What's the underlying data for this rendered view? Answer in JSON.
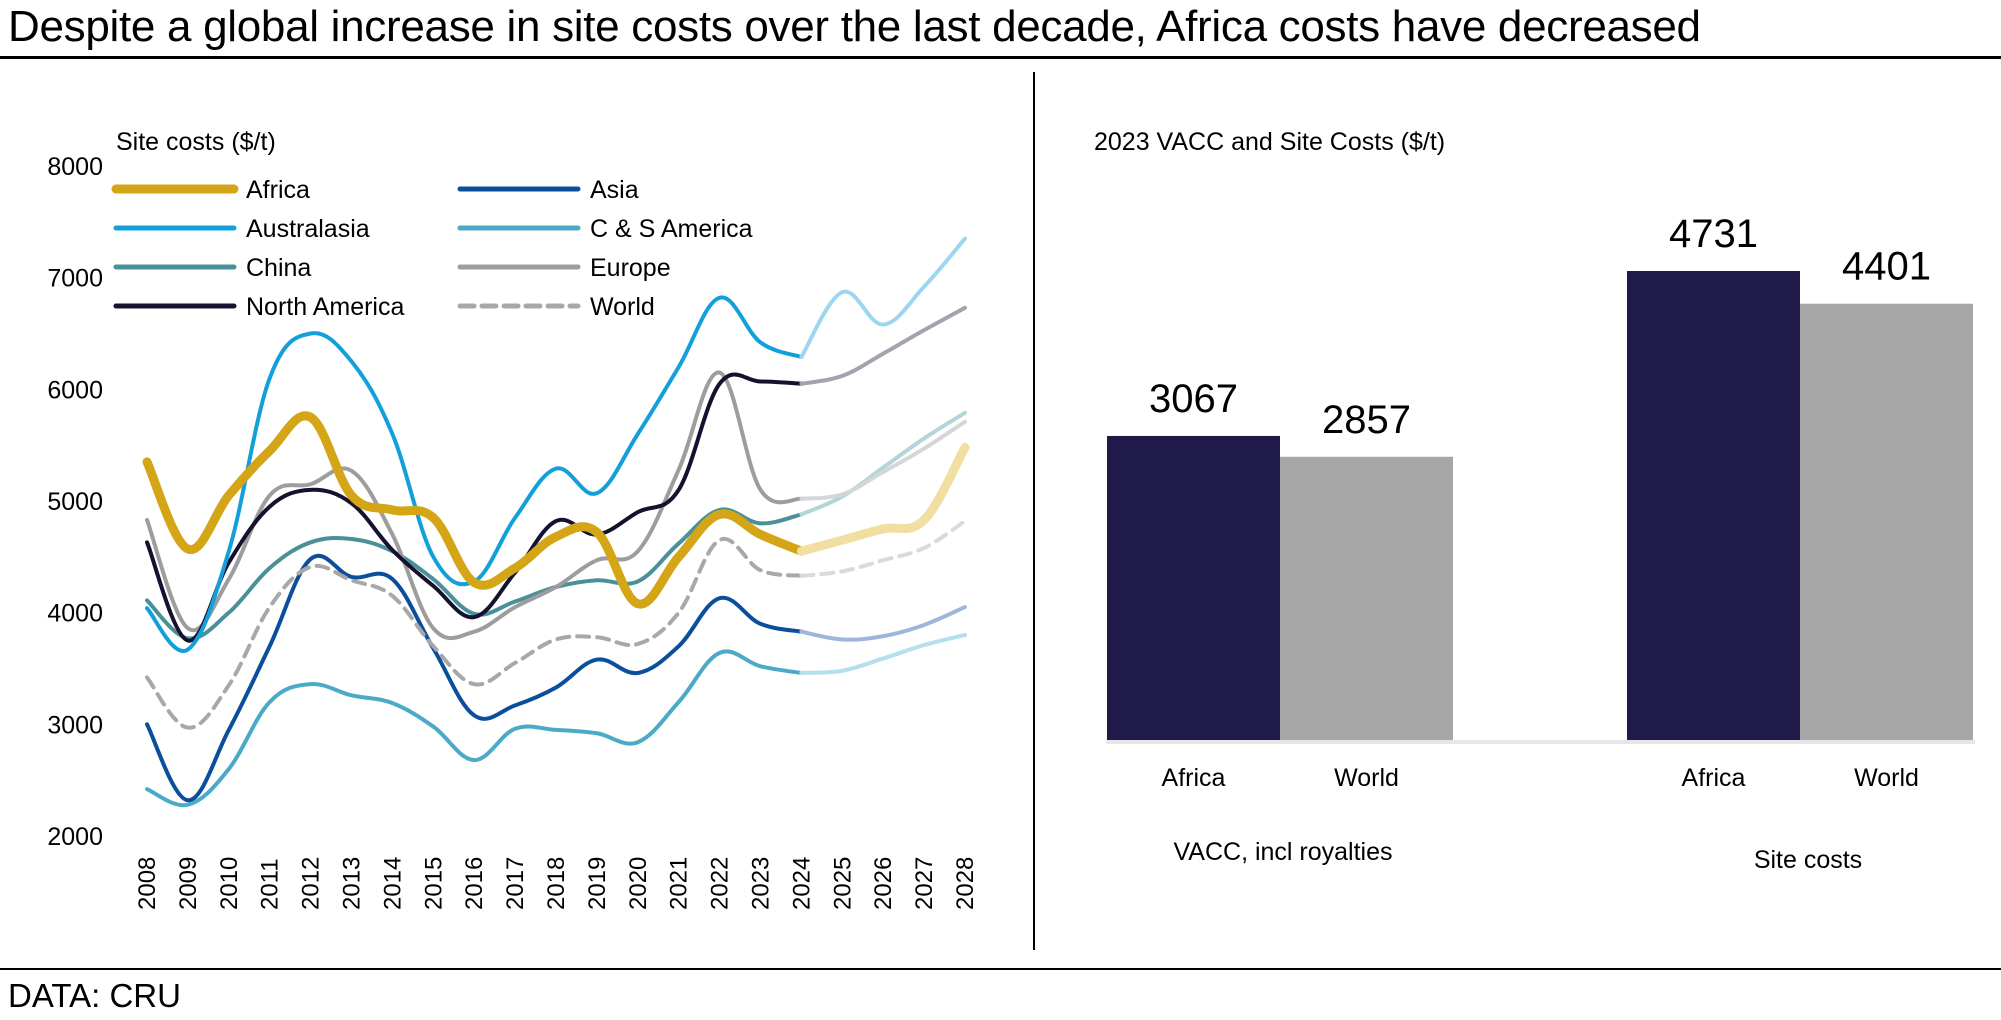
{
  "page": {
    "title": "Despite a global increase in site costs over the last decade, Africa costs have decreased",
    "source": "DATA: CRU"
  },
  "chart_data": [
    {
      "type": "line",
      "title": "Site costs ($/t)",
      "xlabel": "",
      "ylabel": "Site costs ($/t)",
      "ylim": [
        2000,
        8000
      ],
      "yticks": [
        "2000",
        "3000",
        "4000",
        "5000",
        "6000",
        "7000",
        "8000"
      ],
      "x": [
        "2008",
        "2009",
        "2010",
        "2011",
        "2012",
        "2013",
        "2014",
        "2015",
        "2016",
        "2017",
        "2018",
        "2019",
        "2020",
        "2021",
        "2022",
        "2023",
        "2024",
        "2025",
        "2026",
        "2027",
        "2028"
      ],
      "forecast_from": "2024",
      "grid": false,
      "legend_position": "top-left",
      "series": [
        {
          "name": "Africa",
          "color": "#D4A517",
          "forecast_color": "#F0DFA0",
          "style": "solid-thick",
          "values": [
            5350,
            4570,
            5050,
            5450,
            5750,
            5050,
            4920,
            4850,
            4270,
            4400,
            4680,
            4720,
            4080,
            4500,
            4880,
            4700,
            4550,
            4650,
            4750,
            4830,
            5480
          ]
        },
        {
          "name": "Asia",
          "color": "#0B4F9C",
          "forecast_color": "#9DB7DC",
          "style": "solid",
          "values": [
            3000,
            2320,
            2950,
            3700,
            4480,
            4320,
            4300,
            3680,
            3080,
            3170,
            3330,
            3580,
            3460,
            3700,
            4130,
            3900,
            3830,
            3760,
            3790,
            3890,
            4050
          ]
        },
        {
          "name": "Australasia",
          "color": "#13A0DA",
          "forecast_color": "#9ED6F1",
          "style": "solid",
          "values": [
            4040,
            3670,
            4550,
            6100,
            6500,
            6250,
            5600,
            4500,
            4280,
            4850,
            5290,
            5070,
            5600,
            6200,
            6820,
            6420,
            6290,
            6870,
            6580,
            6920,
            7350
          ]
        },
        {
          "name": "C & S America",
          "color": "#4AAAC8",
          "forecast_color": "#B4DFEC",
          "style": "solid",
          "values": [
            2420,
            2280,
            2600,
            3200,
            3360,
            3260,
            3190,
            2980,
            2680,
            2960,
            2950,
            2920,
            2840,
            3200,
            3640,
            3520,
            3460,
            3480,
            3590,
            3710,
            3800
          ]
        },
        {
          "name": "China",
          "color": "#4A9098",
          "forecast_color": "#B3D5D9",
          "style": "solid",
          "values": [
            4110,
            3770,
            4000,
            4400,
            4630,
            4660,
            4550,
            4300,
            3990,
            4100,
            4230,
            4290,
            4280,
            4620,
            4920,
            4800,
            4880,
            5040,
            5300,
            5560,
            5790
          ]
        },
        {
          "name": "Europe",
          "color": "#9D9D9F",
          "forecast_color": "#D6D6D8",
          "style": "solid",
          "values": [
            4830,
            3860,
            4300,
            5050,
            5150,
            5270,
            4700,
            3860,
            3830,
            4050,
            4230,
            4470,
            4550,
            5280,
            6150,
            5100,
            5020,
            5060,
            5260,
            5470,
            5710
          ]
        },
        {
          "name": "North America",
          "color": "#14122E",
          "forecast_color": "#A3A2AE",
          "style": "solid",
          "values": [
            4630,
            3750,
            4450,
            4950,
            5100,
            4980,
            4560,
            4240,
            3960,
            4360,
            4820,
            4700,
            4900,
            5100,
            6050,
            6070,
            6050,
            6120,
            6320,
            6530,
            6730
          ]
        },
        {
          "name": "World",
          "color": "#A8A8AA",
          "forecast_color": "#DADADC",
          "style": "dashed",
          "values": [
            3420,
            2970,
            3350,
            4050,
            4410,
            4290,
            4150,
            3700,
            3360,
            3550,
            3760,
            3780,
            3720,
            4000,
            4650,
            4380,
            4330,
            4370,
            4470,
            4580,
            4820
          ]
        }
      ]
    },
    {
      "type": "bar",
      "title": "2023 VACC and Site Costs ($/t)",
      "groups": [
        {
          "label": "VACC, incl royalties",
          "bars": [
            {
              "category": "Africa",
              "value": 3067,
              "color": "#201A4A"
            },
            {
              "category": "World",
              "value": 2857,
              "color": "#A6A6A6"
            }
          ]
        },
        {
          "label": "Site costs",
          "bars": [
            {
              "category": "Africa",
              "value": 4731,
              "color": "#201A4A"
            },
            {
              "category": "World",
              "value": 4401,
              "color": "#A6A6A6"
            }
          ]
        }
      ],
      "ylim": [
        0,
        5000
      ],
      "data_labels": true,
      "grid": false
    }
  ]
}
